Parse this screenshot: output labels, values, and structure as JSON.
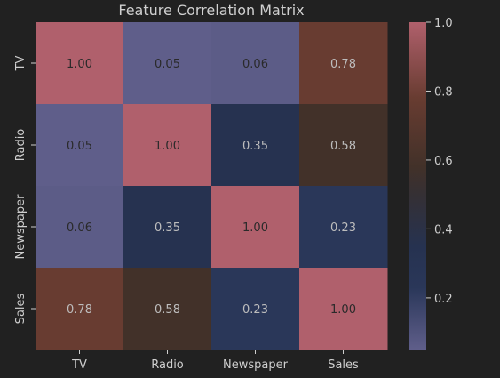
{
  "chart_data": {
    "type": "heatmap",
    "title": "Feature Correlation Matrix",
    "x_labels": [
      "TV",
      "Radio",
      "Newspaper",
      "Sales"
    ],
    "y_labels": [
      "TV",
      "Radio",
      "Newspaper",
      "Sales"
    ],
    "values": [
      [
        1.0,
        0.05,
        0.06,
        0.78
      ],
      [
        0.05,
        1.0,
        0.35,
        0.58
      ],
      [
        0.06,
        0.35,
        1.0,
        0.23
      ],
      [
        0.78,
        0.58,
        0.23,
        1.0
      ]
    ],
    "cell_labels": [
      [
        "1.00",
        "0.05",
        "0.06",
        "0.78"
      ],
      [
        "0.05",
        "1.00",
        "0.35",
        "0.58"
      ],
      [
        "0.06",
        "0.35",
        "1.00",
        "0.23"
      ],
      [
        "0.78",
        "0.58",
        "0.23",
        "1.00"
      ]
    ],
    "colorbar": {
      "min": 0.05,
      "max": 1.0,
      "ticks": [
        0.2,
        0.4,
        0.6,
        0.8,
        1.0
      ],
      "tick_labels": [
        "0.2",
        "0.4",
        "0.6",
        "0.8",
        "1.0"
      ]
    },
    "colors": {
      "background": "#212121",
      "colormap": [
        {
          "v": 0.05,
          "c": "#5f5e8a"
        },
        {
          "v": 0.23,
          "c": "#2a3759"
        },
        {
          "v": 0.35,
          "c": "#263250"
        },
        {
          "v": 0.5,
          "c": "#353034"
        },
        {
          "v": 0.58,
          "c": "#423129"
        },
        {
          "v": 0.78,
          "c": "#683c31"
        },
        {
          "v": 1.0,
          "c": "#b0606c"
        }
      ],
      "text_light": "#bdbdbd",
      "text_dark": "#2a2a2a"
    }
  }
}
